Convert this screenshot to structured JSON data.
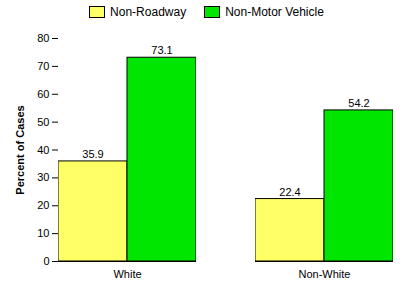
{
  "chart_data": {
    "type": "bar",
    "categories": [
      "White",
      "Non-White"
    ],
    "series": [
      {
        "name": "Non-Roadway",
        "color": "#ffff66",
        "values": [
          35.9,
          22.4
        ]
      },
      {
        "name": "Non-Motor Vehicle",
        "color": "#00e600",
        "values": [
          73.1,
          54.2
        ]
      }
    ],
    "ylabel": "Percent of Cases",
    "ylim": [
      0,
      80
    ],
    "yticks": [
      0,
      10,
      20,
      30,
      40,
      50,
      60,
      70,
      80
    ],
    "data_labels": true,
    "legend": "top",
    "grid": false
  }
}
